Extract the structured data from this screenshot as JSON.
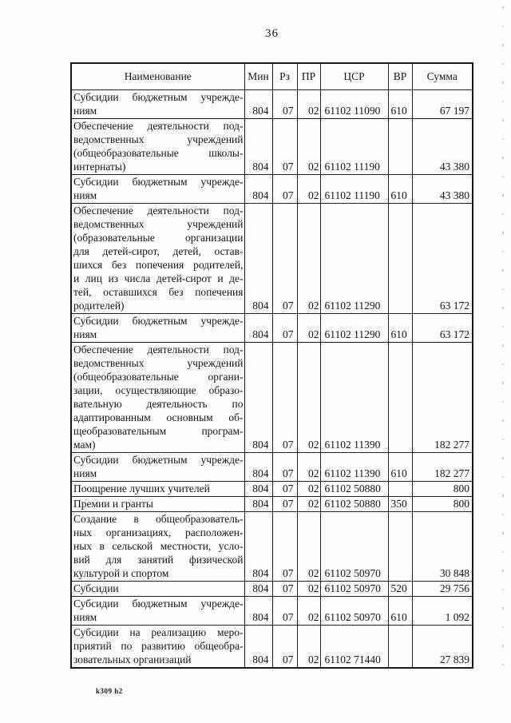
{
  "page": {
    "number": "36",
    "footer_code": "k309 h2"
  },
  "table": {
    "headers": [
      "Наименование",
      "Мин",
      "Рз",
      "ПР",
      "ЦСР",
      "ВР",
      "Сумма"
    ],
    "rows": [
      {
        "name_lines": [
          "Субсидии бюджетным учрежде-",
          "ниям"
        ],
        "min": "804",
        "rz": "07",
        "pr": "02",
        "csr": "61102 11090",
        "vr": "610",
        "sum": "67 197"
      },
      {
        "name_lines": [
          "Обеспечение деятельности под-",
          "ведомственных учреждений",
          "(общеобразовательные школы-",
          "интернаты)"
        ],
        "min": "804",
        "rz": "07",
        "pr": "02",
        "csr": "61102 11190",
        "vr": "",
        "sum": "43 380"
      },
      {
        "name_lines": [
          "Субсидии бюджетным учрежде-",
          "ниям"
        ],
        "min": "804",
        "rz": "07",
        "pr": "02",
        "csr": "61102 11190",
        "vr": "610",
        "sum": "43 380"
      },
      {
        "name_lines": [
          "Обеспечение деятельности под-",
          "ведомственных учреждений",
          "(образовательные организации",
          "для детей-сирот, детей, остав-",
          "шихся без попечения родителей,",
          "и лиц из числа детей-сирот и де-",
          "тей, оставшихся без попечения",
          "родителей)"
        ],
        "min": "804",
        "rz": "07",
        "pr": "02",
        "csr": "61102 11290",
        "vr": "",
        "sum": "63 172"
      },
      {
        "name_lines": [
          "Субсидии бюджетным учрежде-",
          "ниям"
        ],
        "min": "804",
        "rz": "07",
        "pr": "02",
        "csr": "61102 11290",
        "vr": "610",
        "sum": "63 172"
      },
      {
        "name_lines": [
          "Обеспечение деятельности под-",
          "ведомственных учреждений",
          "(общеобразовательные органи-",
          "зации, осуществляющие образо-",
          "вательную деятельность по",
          "адаптированным основным об-",
          "щеобразовательным програм-",
          "мам)"
        ],
        "min": "804",
        "rz": "07",
        "pr": "02",
        "csr": "61102 11390",
        "vr": "",
        "sum": "182 277"
      },
      {
        "name_lines": [
          "Субсидии бюджетным учрежде-",
          "ниям"
        ],
        "min": "804",
        "rz": "07",
        "pr": "02",
        "csr": "61102 11390",
        "vr": "610",
        "sum": "182 277"
      },
      {
        "name_lines": [
          "Поощрение лучших учителей"
        ],
        "min": "804",
        "rz": "07",
        "pr": "02",
        "csr": "61102 50880",
        "vr": "",
        "sum": "800"
      },
      {
        "name_lines": [
          "Премии и гранты"
        ],
        "min": "804",
        "rz": "07",
        "pr": "02",
        "csr": "61102 50880",
        "vr": "350",
        "sum": "800"
      },
      {
        "name_lines": [
          "Создание в общеобразователь-",
          "ных организациях, расположен-",
          "ных в сельской местности, усло-",
          "вий для занятий физической",
          "культурой и спортом"
        ],
        "min": "804",
        "rz": "07",
        "pr": "02",
        "csr": "61102 50970",
        "vr": "",
        "sum": "30 848"
      },
      {
        "name_lines": [
          "Субсидии"
        ],
        "min": "804",
        "rz": "07",
        "pr": "02",
        "csr": "61102 50970",
        "vr": "520",
        "sum": "29 756"
      },
      {
        "name_lines": [
          "Субсидии бюджетным учрежде-",
          "ниям"
        ],
        "min": "804",
        "rz": "07",
        "pr": "02",
        "csr": "61102 50970",
        "vr": "610",
        "sum": "1 092"
      },
      {
        "name_lines": [
          "Субсидии на реализацию меро-",
          "приятий по развитию общеобра-",
          "зовательных организаций"
        ],
        "min": "804",
        "rz": "07",
        "pr": "02",
        "csr": "61102 71440",
        "vr": "",
        "sum": "27 839"
      }
    ]
  }
}
